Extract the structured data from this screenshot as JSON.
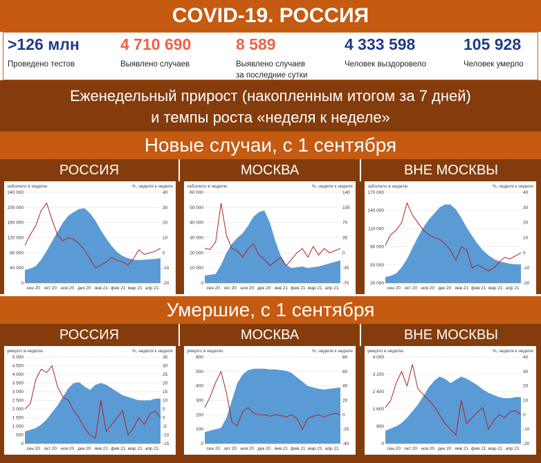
{
  "header": {
    "title": "COVID-19. РОССИЯ"
  },
  "stats": [
    {
      "value": ">126 млн",
      "label": "Проведено тестов",
      "color": "#1f3c88"
    },
    {
      "value": "4 710 690",
      "label": "Выявлено случаев",
      "color": "#f0604a"
    },
    {
      "value": "8 589",
      "label": "Выявлено случаев",
      "label2": "за последние сутки",
      "color": "#f0604a"
    },
    {
      "value": "4 333 598",
      "label": "Человек выздоровело",
      "color": "#1f3c88"
    },
    {
      "value": "105 928",
      "label": "Человек умерло",
      "color": "#1f3c88"
    }
  ],
  "subtitle": {
    "line1": "Еженедельный прирост (накопленным итогом за 7 дней)",
    "line2": "и темпы роста «неделя к неделе»"
  },
  "sections": [
    {
      "title": "Новые случаи, с 1 сентября"
    },
    {
      "title": "Умершие, с 1 сентября"
    }
  ],
  "regions": [
    "РОССИЯ",
    "МОСКВА",
    "ВНЕ МОСКВЫ"
  ],
  "colors": {
    "area": "#5b9bd5",
    "line": "#b01e23",
    "band_dark": "#843c0c",
    "band_light": "#c55a11"
  },
  "chart_data": [
    {
      "type": "area",
      "group": "cases",
      "region": "РОССИЯ",
      "ylabel_left": "заболело в неделю",
      "ylabel_right": "%, неделя к неделе",
      "ylim_left": [
        0,
        240000
      ],
      "yticks_left": [
        "0",
        "40 000",
        "80 000",
        "120 000",
        "160 000",
        "200 000",
        "240 000"
      ],
      "ylim_right": [
        -20,
        40
      ],
      "yticks_right": [
        "-20",
        "-10",
        "0",
        "10",
        "20",
        "30",
        "40"
      ],
      "xticks": [
        "сен 20",
        "окт 20",
        "ноя 20",
        "дек 20",
        "янв 21",
        "фев 21",
        "мар 21",
        "апр 21"
      ],
      "area_values": [
        35000,
        38000,
        45000,
        62000,
        85000,
        110000,
        135000,
        160000,
        178000,
        188000,
        196000,
        198000,
        185000,
        165000,
        140000,
        118000,
        98000,
        82000,
        72000,
        66000,
        62000,
        61000,
        62000,
        63000,
        64000,
        66000
      ],
      "line_values": [
        5,
        12,
        18,
        28,
        33,
        22,
        12,
        8,
        10,
        9,
        6,
        2,
        -4,
        -10,
        -8,
        -6,
        -3,
        -5,
        -6,
        -8,
        -4,
        2,
        -1,
        0,
        1,
        3
      ]
    },
    {
      "type": "area",
      "group": "cases",
      "region": "МОСКВА",
      "ylabel_left": "заболело в неделю",
      "ylabel_right": "%, неделя к неделе",
      "ylim_left": [
        0,
        60000
      ],
      "yticks_left": [
        "0",
        "10 000",
        "20 000",
        "30 000",
        "40 000",
        "50 000",
        "60 000"
      ],
      "ylim_right": [
        -70,
        140
      ],
      "yticks_right": [
        "-70",
        "-35",
        "0",
        "35",
        "70",
        "105",
        "140"
      ],
      "xticks": [
        "сен 20",
        "окт 20",
        "ноя 20",
        "дек 20",
        "янв 21",
        "фев 21",
        "мар 21",
        "апр 21"
      ],
      "area_values": [
        5000,
        5500,
        6000,
        12000,
        20000,
        26000,
        30000,
        33000,
        38000,
        44000,
        47000,
        48000,
        40000,
        28000,
        18000,
        12000,
        10000,
        10500,
        11000,
        10000,
        10500,
        11000,
        12000,
        13000,
        14000,
        15000
      ],
      "line_values": [
        10,
        8,
        25,
        115,
        40,
        10,
        5,
        -10,
        10,
        20,
        -5,
        -15,
        -30,
        -20,
        -10,
        -30,
        -15,
        0,
        10,
        -10,
        15,
        -5,
        10,
        0,
        5,
        10
      ]
    },
    {
      "type": "area",
      "group": "cases",
      "region": "ВНЕ МОСКВЫ",
      "ylabel_left": "заболело в неделю",
      "ylabel_right": "%, неделя к неделе",
      "ylim_left": [
        20000,
        170000
      ],
      "yticks_left": [
        "20 000",
        "50 000",
        "80 000",
        "110 000",
        "140 000",
        "170 000"
      ],
      "ylim_right": [
        -20,
        40
      ],
      "yticks_right": [
        "-20",
        "-10",
        "0",
        "10",
        "20",
        "30",
        "40"
      ],
      "xticks": [
        "сен 20",
        "окт 20",
        "ноя 20",
        "дек 20",
        "янв 21",
        "фев 21",
        "мар 21",
        "апр 21"
      ],
      "area_values": [
        30000,
        32000,
        36000,
        46000,
        60000,
        78000,
        96000,
        112000,
        125000,
        135000,
        145000,
        150000,
        150000,
        142000,
        128000,
        112000,
        98000,
        85000,
        74000,
        66000,
        60000,
        56000,
        54000,
        52000,
        51000,
        51000
      ],
      "line_values": [
        5,
        12,
        15,
        20,
        33,
        25,
        20,
        15,
        12,
        10,
        9,
        6,
        2,
        -5,
        4,
        2,
        -10,
        -8,
        -10,
        -12,
        -10,
        -6,
        -3,
        -4,
        -2,
        0
      ]
    },
    {
      "type": "area",
      "group": "deaths",
      "region": "РОССИЯ",
      "ylabel_left": "умерло в неделю",
      "ylabel_right": "%, неделя к неделе",
      "ylim_left": [
        0,
        5000
      ],
      "yticks_left": [
        "0",
        "500",
        "1 000",
        "1 500",
        "2 000",
        "2 500",
        "3 000",
        "3 500",
        "4 000",
        "4 500",
        "5 000"
      ],
      "ylim_right": [
        -15,
        35
      ],
      "yticks_right": [
        "-15",
        "-10",
        "-5",
        "0",
        "5",
        "10",
        "15",
        "20",
        "25",
        "30",
        "35"
      ],
      "xticks": [
        "сен 20",
        "окт 20",
        "ноя 20",
        "дек 20",
        "янв 21",
        "фев 21",
        "мар 21",
        "апр 21"
      ],
      "area_values": [
        700,
        800,
        900,
        1100,
        1400,
        1800,
        2200,
        2700,
        3200,
        3500,
        3550,
        3300,
        3100,
        3400,
        3500,
        3400,
        3200,
        3000,
        2800,
        2700,
        2600,
        2500,
        2500,
        2500,
        2600,
        2600
      ],
      "line_values": [
        5,
        8,
        22,
        28,
        26,
        30,
        18,
        12,
        10,
        4,
        0,
        -6,
        -10,
        -12,
        10,
        -8,
        -4,
        0,
        4,
        -10,
        -6,
        0,
        -4,
        2,
        4,
        0
      ]
    },
    {
      "type": "area",
      "group": "deaths",
      "region": "МОСКВА",
      "ylabel_left": "умерло в неделю",
      "ylabel_right": "%, неделя к неделе",
      "ylim_left": [
        0,
        600
      ],
      "yticks_left": [
        "0",
        "100",
        "200",
        "300",
        "400",
        "500",
        "600"
      ],
      "ylim_right": [
        -40,
        80
      ],
      "yticks_right": [
        "-40",
        "-20",
        "0",
        "20",
        "40",
        "60",
        "80"
      ],
      "xticks": [
        "сен 20",
        "окт 20",
        "ноя 20",
        "дек 20",
        "янв 21",
        "фев 21",
        "мар 21",
        "апр 21"
      ],
      "area_values": [
        80,
        90,
        100,
        110,
        180,
        300,
        420,
        480,
        510,
        520,
        520,
        520,
        515,
        515,
        510,
        505,
        490,
        460,
        430,
        400,
        390,
        380,
        375,
        380,
        385,
        390
      ],
      "line_values": [
        10,
        25,
        45,
        60,
        30,
        -10,
        -15,
        5,
        10,
        2,
        0,
        0,
        -2,
        0,
        -1,
        -3,
        0,
        -5,
        -20,
        -5,
        -2,
        0,
        -3,
        0,
        2,
        0
      ]
    },
    {
      "type": "area",
      "group": "deaths",
      "region": "ВНЕ МОСКВЫ",
      "ylabel_left": "умерло в неделю",
      "ylabel_right": "%, неделя к неделе",
      "ylim_left": [
        0,
        4000
      ],
      "yticks_left": [
        "0",
        "800",
        "1 600",
        "2 400",
        "3 200",
        "4 000"
      ],
      "ylim_right": [
        -20,
        40
      ],
      "yticks_right": [
        "-20",
        "-10",
        "0",
        "10",
        "20",
        "30",
        "40"
      ],
      "xticks": [
        "сен 20",
        "окт 20",
        "ноя 20",
        "дек 20",
        "янв 21",
        "фев 21",
        "мар 21",
        "апр 21"
      ],
      "area_values": [
        600,
        700,
        800,
        950,
        1200,
        1500,
        1800,
        2200,
        2600,
        2900,
        3100,
        3000,
        2800,
        2950,
        3100,
        3000,
        2850,
        2700,
        2500,
        2350,
        2250,
        2150,
        2100,
        2100,
        2150,
        2150
      ],
      "line_values": [
        5,
        10,
        22,
        30,
        20,
        35,
        18,
        14,
        10,
        6,
        0,
        -6,
        -10,
        -14,
        10,
        -6,
        -2,
        2,
        5,
        -10,
        -4,
        0,
        -2,
        2,
        3,
        0
      ]
    }
  ]
}
